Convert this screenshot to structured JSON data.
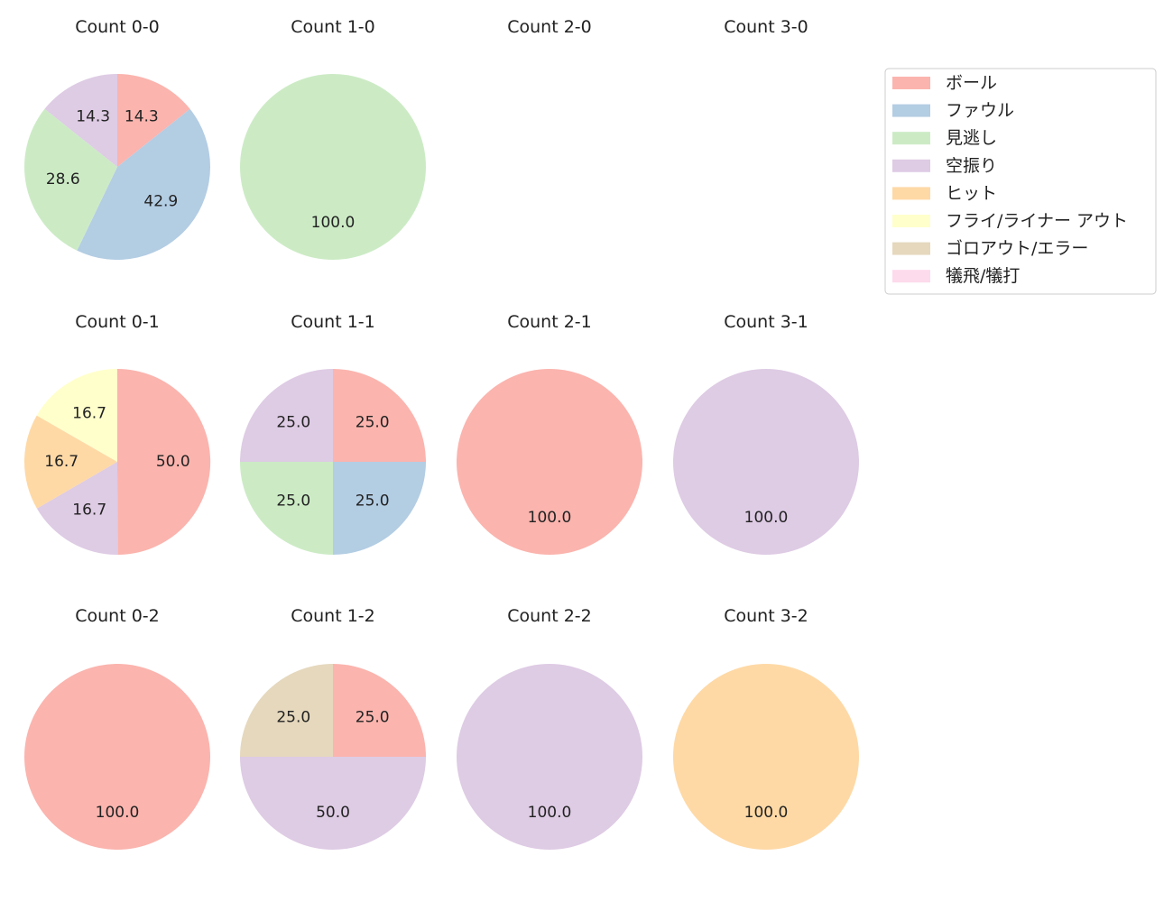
{
  "chart_data": {
    "type": "pie",
    "legend": {
      "placement": "top-right",
      "entries": [
        {
          "name": "ボール",
          "color": "#fbb4ae"
        },
        {
          "name": "ファウル",
          "color": "#b3cde3"
        },
        {
          "name": "見逃し",
          "color": "#ccebc5"
        },
        {
          "name": "空振り",
          "color": "#decbe4"
        },
        {
          "name": "ヒット",
          "color": "#fed9a6"
        },
        {
          "name": "フライ/ライナー アウト",
          "color": "#ffffcc"
        },
        {
          "name": "ゴロアウト/エラー",
          "color": "#e5d8bd"
        },
        {
          "name": "犠飛/犠打",
          "color": "#fddaec"
        }
      ]
    },
    "panels": [
      {
        "title": "Count 0-0",
        "row": 0,
        "col": 0,
        "slices": [
          {
            "category": "ボール",
            "value": 14.3
          },
          {
            "category": "ファウル",
            "value": 42.9
          },
          {
            "category": "見逃し",
            "value": 28.6
          },
          {
            "category": "空振り",
            "value": 14.3
          }
        ]
      },
      {
        "title": "Count 1-0",
        "row": 0,
        "col": 1,
        "slices": [
          {
            "category": "見逃し",
            "value": 100.0
          }
        ]
      },
      {
        "title": "Count 2-0",
        "row": 0,
        "col": 2,
        "slices": []
      },
      {
        "title": "Count 3-0",
        "row": 0,
        "col": 3,
        "slices": []
      },
      {
        "title": "Count 0-1",
        "row": 1,
        "col": 0,
        "slices": [
          {
            "category": "ボール",
            "value": 50.0
          },
          {
            "category": "空振り",
            "value": 16.7
          },
          {
            "category": "ヒット",
            "value": 16.7
          },
          {
            "category": "フライ/ライナー アウト",
            "value": 16.7
          }
        ]
      },
      {
        "title": "Count 1-1",
        "row": 1,
        "col": 1,
        "slices": [
          {
            "category": "ボール",
            "value": 25.0
          },
          {
            "category": "ファウル",
            "value": 25.0
          },
          {
            "category": "見逃し",
            "value": 25.0
          },
          {
            "category": "空振り",
            "value": 25.0
          }
        ]
      },
      {
        "title": "Count 2-1",
        "row": 1,
        "col": 2,
        "slices": [
          {
            "category": "ボール",
            "value": 100.0
          }
        ]
      },
      {
        "title": "Count 3-1",
        "row": 1,
        "col": 3,
        "slices": [
          {
            "category": "空振り",
            "value": 100.0
          }
        ]
      },
      {
        "title": "Count 0-2",
        "row": 2,
        "col": 0,
        "slices": [
          {
            "category": "ボール",
            "value": 100.0
          }
        ]
      },
      {
        "title": "Count 1-2",
        "row": 2,
        "col": 1,
        "slices": [
          {
            "category": "ボール",
            "value": 25.0
          },
          {
            "category": "空振り",
            "value": 50.0
          },
          {
            "category": "ゴロアウト/エラー",
            "value": 25.0
          }
        ]
      },
      {
        "title": "Count 2-2",
        "row": 2,
        "col": 2,
        "slices": [
          {
            "category": "空振り",
            "value": 100.0
          }
        ]
      },
      {
        "title": "Count 3-2",
        "row": 2,
        "col": 3,
        "slices": [
          {
            "category": "ヒット",
            "value": 100.0
          }
        ]
      }
    ]
  }
}
